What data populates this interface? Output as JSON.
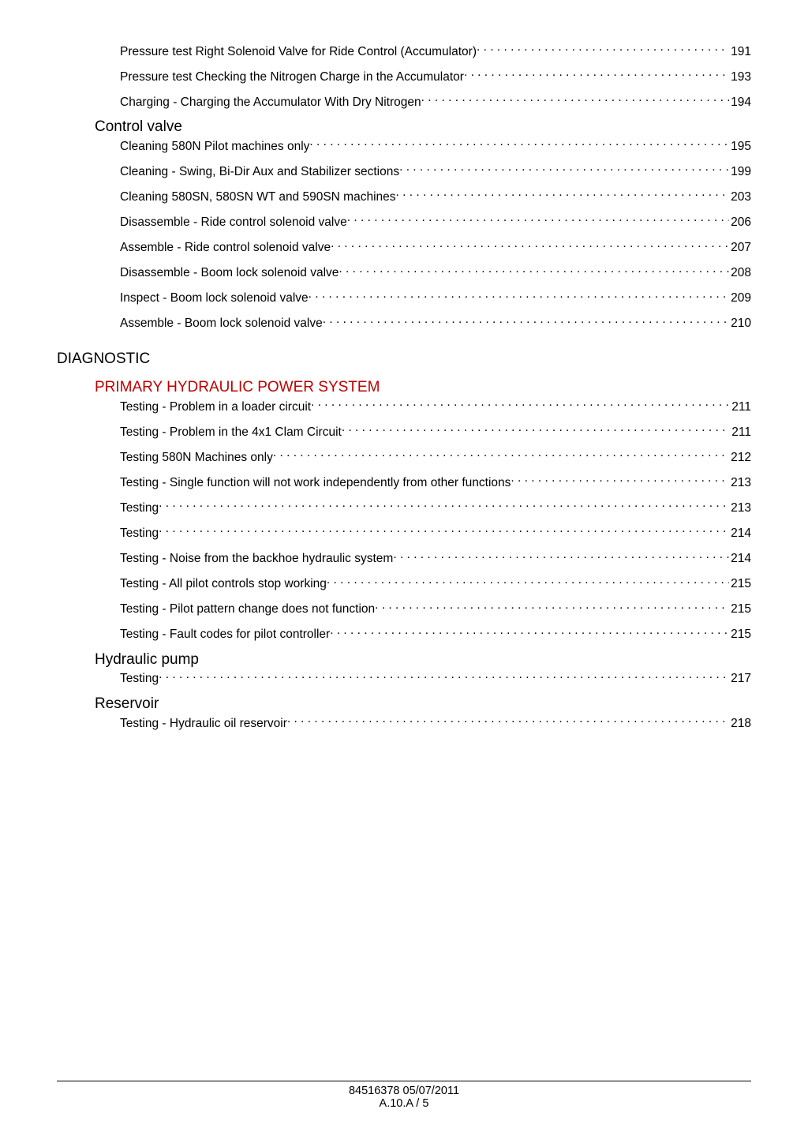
{
  "colors": {
    "text": "#000000",
    "accent": "#c00000",
    "background": "#ffffff"
  },
  "typography": {
    "entry_fontsize": 15.5,
    "heading_fontsize": 19,
    "footer_fontsize": 14.5,
    "font_family": "Arial"
  },
  "section1": {
    "pre_entries": [
      {
        "label": "Pressure test Right Solenoid Valve for Ride Control (Accumulator)",
        "page": "191"
      },
      {
        "label": "Pressure test Checking the Nitrogen Charge in the Accumulator",
        "page": "193"
      },
      {
        "label": "Charging - Charging the Accumulator With Dry Nitrogen",
        "page": "194"
      }
    ],
    "sub": {
      "title": "Control valve",
      "entries": [
        {
          "label": "Cleaning 580N Pilot machines only",
          "page": "195"
        },
        {
          "label": "Cleaning - Swing, Bi-Dir Aux and Stabilizer sections",
          "page": "199"
        },
        {
          "label": "Cleaning 580SN, 580SN WT and 590SN machines",
          "page": "203"
        },
        {
          "label": "Disassemble - Ride control solenoid valve",
          "page": "206"
        },
        {
          "label": "Assemble - Ride control solenoid valve",
          "page": "207"
        },
        {
          "label": "Disassemble - Boom lock solenoid valve",
          "page": "208"
        },
        {
          "label": "Inspect - Boom lock solenoid valve",
          "page": "209"
        },
        {
          "label": "Assemble - Boom lock solenoid valve",
          "page": "210"
        }
      ]
    }
  },
  "diagnostic": {
    "title": "DIAGNOSTIC",
    "primary": {
      "title": "PRIMARY HYDRAULIC POWER SYSTEM",
      "entries": [
        {
          "label": "Testing - Problem in a loader circuit",
          "page": "211"
        },
        {
          "label": "Testing - Problem in the 4x1 Clam Circuit",
          "page": "211"
        },
        {
          "label": "Testing 580N Machines only",
          "page": "212"
        },
        {
          "label": "Testing - Single function will not work independently from other functions",
          "page": "213"
        },
        {
          "label": "Testing",
          "page": "213"
        },
        {
          "label": "Testing",
          "page": "214"
        },
        {
          "label": "Testing - Noise from the backhoe hydraulic system",
          "page": "214"
        },
        {
          "label": "Testing - All pilot controls stop working",
          "page": "215"
        },
        {
          "label": "Testing - Pilot pattern change does not function",
          "page": "215"
        },
        {
          "label": "Testing - Fault codes for pilot controller",
          "page": "215"
        }
      ]
    },
    "hydraulic": {
      "title": "Hydraulic pump",
      "entries": [
        {
          "label": "Testing",
          "page": "217"
        }
      ]
    },
    "reservoir": {
      "title": "Reservoir",
      "entries": [
        {
          "label": "Testing - Hydraulic oil reservoir",
          "page": "218"
        }
      ]
    }
  },
  "footer": {
    "line1": "84516378 05/07/2011",
    "line2": "A.10.A / 5"
  }
}
